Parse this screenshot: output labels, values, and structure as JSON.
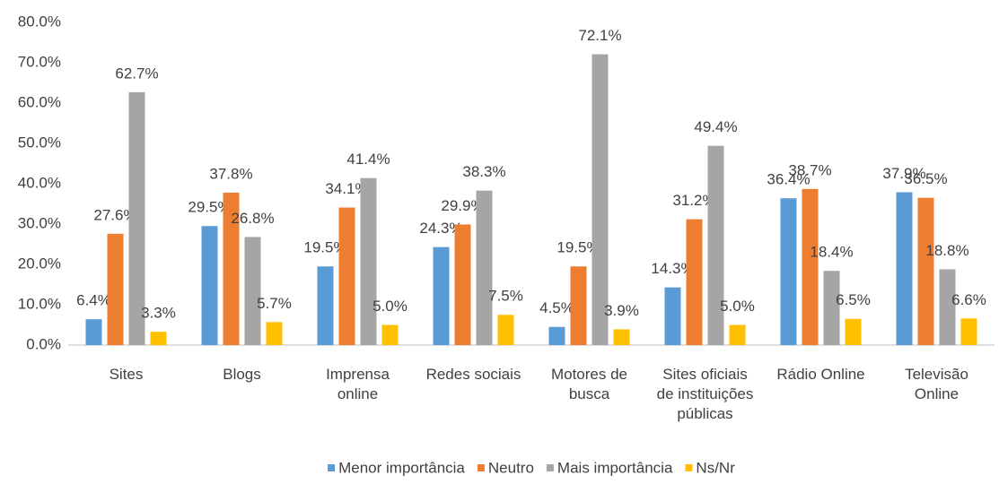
{
  "chart_data": {
    "type": "bar",
    "categories": [
      "Sites",
      "Blogs",
      "Imprensa online",
      "Redes sociais",
      "Motores de busca",
      "Sites oficiais de instituições públicas",
      "Rádio Online",
      "Televisão Online"
    ],
    "series": [
      {
        "name": "Menor importância",
        "color": "#5b9bd5",
        "values": [
          6.4,
          29.5,
          19.5,
          24.3,
          4.5,
          14.3,
          36.4,
          37.9
        ],
        "value_labels": [
          "6.4%",
          "29.5%",
          "19.5%",
          "24.3%",
          "4.5%",
          "14.3%",
          "36.4%",
          "37.9%"
        ]
      },
      {
        "name": "Neutro",
        "color": "#ed7d31",
        "values": [
          27.6,
          37.8,
          34.1,
          29.9,
          19.5,
          31.2,
          38.7,
          36.5
        ],
        "value_labels": [
          "27.6%",
          "37.8%",
          "34.1%",
          "29.9%",
          "19.5%",
          "31.2%",
          "38.7%",
          "36.5%"
        ]
      },
      {
        "name": "Mais importância",
        "color": "#a5a5a5",
        "values": [
          62.7,
          26.8,
          41.4,
          38.3,
          72.1,
          49.4,
          18.4,
          18.8
        ],
        "value_labels": [
          "62.7%",
          "26.8%",
          "41.4%",
          "38.3%",
          "72.1%",
          "49.4%",
          "18.4%",
          "18.8%"
        ]
      },
      {
        "name": "Ns/Nr",
        "color": "#ffc000",
        "values": [
          3.3,
          5.7,
          5.0,
          7.5,
          3.9,
          5.0,
          6.5,
          6.6
        ],
        "value_labels": [
          "3.3%",
          "5.7%",
          "5.0%",
          "7.5%",
          "3.9%",
          "5.0%",
          "6.5%",
          "6.6%"
        ]
      }
    ],
    "ylim": [
      0,
      80
    ],
    "yticks": [
      {
        "value": 0,
        "label": "0.0%"
      },
      {
        "value": 10,
        "label": "10.0%"
      },
      {
        "value": 20,
        "label": "20.0%"
      },
      {
        "value": 30,
        "label": "30.0%"
      },
      {
        "value": 40,
        "label": "40.0%"
      },
      {
        "value": 50,
        "label": "50.0%"
      },
      {
        "value": 60,
        "label": "60.0%"
      },
      {
        "value": 70,
        "label": "70.0%"
      },
      {
        "value": 80,
        "label": "80.0%"
      }
    ],
    "grid": false,
    "legend": "bottom"
  }
}
